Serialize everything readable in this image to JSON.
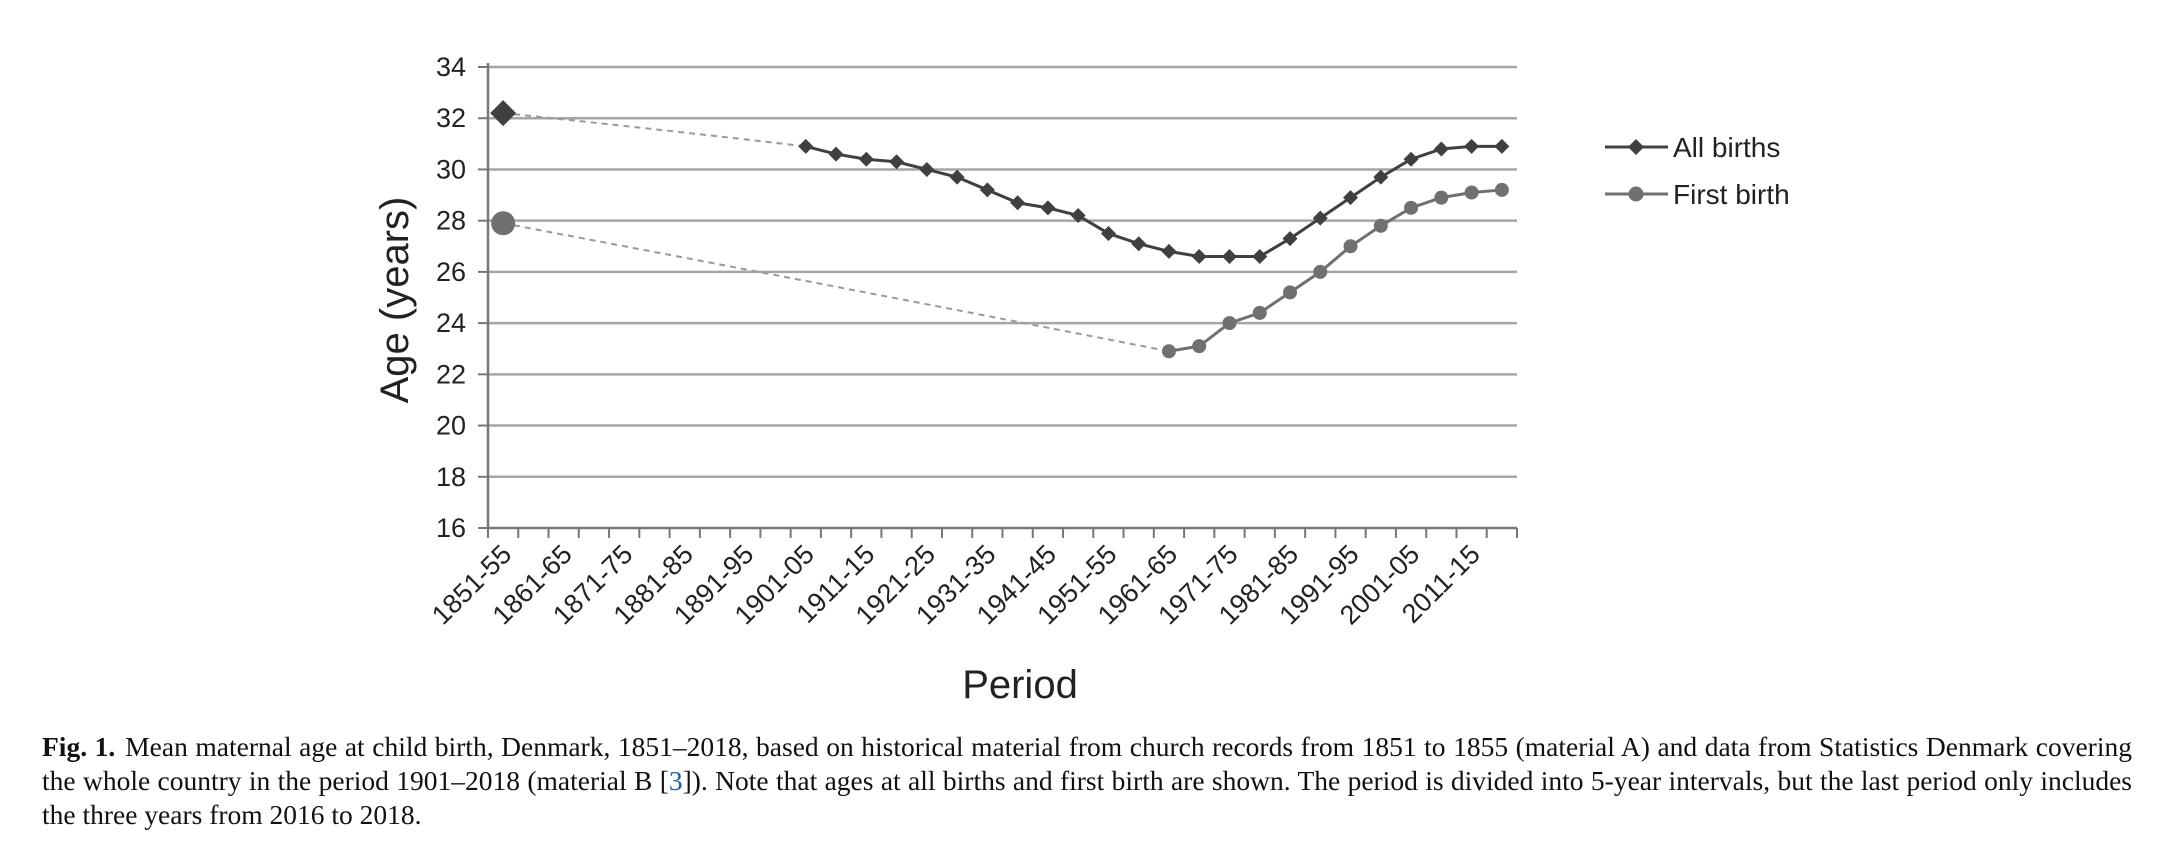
{
  "chart_data": {
    "type": "line",
    "ylabel": "Age (years)",
    "xlabel": "Period",
    "ylim": [
      16,
      34
    ],
    "yticks": [
      16,
      18,
      20,
      22,
      24,
      26,
      28,
      30,
      32,
      34
    ],
    "grid": true,
    "legend_position": "right",
    "periods": [
      "1851-55",
      "1856-60",
      "1861-65",
      "1866-70",
      "1871-75",
      "1876-80",
      "1881-85",
      "1886-90",
      "1891-95",
      "1896-00",
      "1901-05",
      "1906-10",
      "1911-15",
      "1916-20",
      "1921-25",
      "1926-30",
      "1931-35",
      "1936-40",
      "1941-45",
      "1946-50",
      "1951-55",
      "1956-60",
      "1961-65",
      "1966-70",
      "1971-75",
      "1976-80",
      "1981-85",
      "1986-90",
      "1991-95",
      "1996-00",
      "2001-05",
      "2006-10",
      "2011-15",
      "2016-18"
    ],
    "tick_labels": [
      "1851-55",
      "1861-65",
      "1871-75",
      "1881-85",
      "1891-95",
      "1901-05",
      "1911-15",
      "1921-25",
      "1931-35",
      "1941-45",
      "1951-55",
      "1961-65",
      "1971-75",
      "1981-85",
      "1991-95",
      "2001-05",
      "2011-15"
    ],
    "series": [
      {
        "name": "All births",
        "marker": "diamond",
        "color": "#404040",
        "points": [
          {
            "period": "1851-55",
            "value": 32.2,
            "material": "A"
          },
          {
            "period": "1901-05",
            "value": 30.9
          },
          {
            "period": "1906-10",
            "value": 30.6
          },
          {
            "period": "1911-15",
            "value": 30.4
          },
          {
            "period": "1916-20",
            "value": 30.3
          },
          {
            "period": "1921-25",
            "value": 30.0
          },
          {
            "period": "1926-30",
            "value": 29.7
          },
          {
            "period": "1931-35",
            "value": 29.2
          },
          {
            "period": "1936-40",
            "value": 28.7
          },
          {
            "period": "1941-45",
            "value": 28.5
          },
          {
            "period": "1946-50",
            "value": 28.2
          },
          {
            "period": "1951-55",
            "value": 27.5
          },
          {
            "period": "1956-60",
            "value": 27.1
          },
          {
            "period": "1961-65",
            "value": 26.8
          },
          {
            "period": "1966-70",
            "value": 26.6
          },
          {
            "period": "1971-75",
            "value": 26.6
          },
          {
            "period": "1976-80",
            "value": 26.6
          },
          {
            "period": "1981-85",
            "value": 27.3
          },
          {
            "period": "1986-90",
            "value": 28.1
          },
          {
            "period": "1991-95",
            "value": 28.9
          },
          {
            "period": "1996-00",
            "value": 29.7
          },
          {
            "period": "2001-05",
            "value": 30.4
          },
          {
            "period": "2006-10",
            "value": 30.8
          },
          {
            "period": "2011-15",
            "value": 30.9
          },
          {
            "period": "2016-18",
            "value": 30.9
          }
        ]
      },
      {
        "name": "First birth",
        "marker": "circle",
        "color": "#707070",
        "points": [
          {
            "period": "1851-55",
            "value": 27.9,
            "material": "A"
          },
          {
            "period": "1961-65",
            "value": 22.9
          },
          {
            "period": "1966-70",
            "value": 23.1
          },
          {
            "period": "1971-75",
            "value": 24.0
          },
          {
            "period": "1976-80",
            "value": 24.4
          },
          {
            "period": "1981-85",
            "value": 25.2
          },
          {
            "period": "1986-90",
            "value": 26.0
          },
          {
            "period": "1991-95",
            "value": 27.0
          },
          {
            "period": "1996-00",
            "value": 27.8
          },
          {
            "period": "2001-05",
            "value": 28.5
          },
          {
            "period": "2006-10",
            "value": 28.9
          },
          {
            "period": "2011-15",
            "value": 29.1
          },
          {
            "period": "2016-18",
            "value": 29.2
          }
        ]
      }
    ]
  },
  "caption": {
    "label": "Fig. 1.",
    "text_before_ref": "Mean maternal age at child birth, Denmark, 1851–2018, based on historical material from church records from 1851 to 1855 (material A) and data from Statistics Denmark covering the whole country in the period 1901–2018 (material B [",
    "ref": "3",
    "text_after_ref": "]). Note that ages at all births and first birth are shown. The period is divided into 5-year intervals, but the last period only includes the three years from 2016 to 2018."
  }
}
